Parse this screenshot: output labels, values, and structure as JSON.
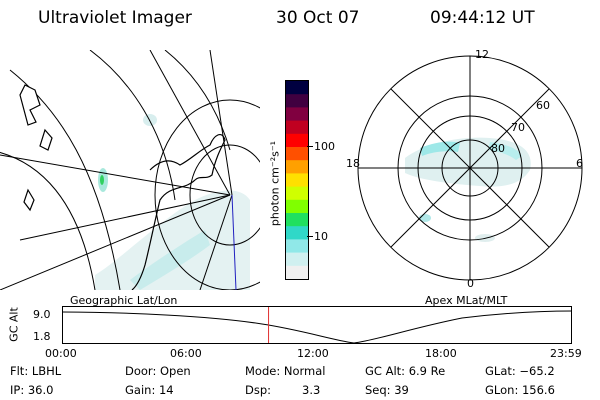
{
  "header": {
    "title": "Ultraviolet Imager",
    "date": "30 Oct 07",
    "time": "09:44:12 UT"
  },
  "geo_panel": {
    "label": "Geographic Lat/Lon"
  },
  "colorbar": {
    "unit_label": "photon cm⁻²s⁻¹",
    "ticks": [
      "100",
      "10"
    ],
    "colors": [
      "#000040",
      "#400040",
      "#800040",
      "#c00020",
      "#ff0000",
      "#ff5000",
      "#ffa000",
      "#ffe000",
      "#d0ff00",
      "#80ff00",
      "#20e060",
      "#30d8c8",
      "#90e8e8",
      "#d0f0f0",
      "#f0f0f0"
    ]
  },
  "polar_panel": {
    "label": "Apex MLat/MLT",
    "mlt_labels": {
      "top": "12",
      "left": "18",
      "right": "6",
      "bottom": "0"
    },
    "lat_labels": [
      "60",
      "70",
      "80"
    ]
  },
  "altitude_plot": {
    "ylabel": "GC Alt",
    "yticks": [
      "9.0",
      "1.8"
    ],
    "xticks": [
      "00:00",
      "06:00",
      "12:00",
      "18:00",
      "23:59"
    ],
    "current_time_fraction": 0.405
  },
  "status": {
    "flt": "Flt: LBHL",
    "ip": "IP: 36.0",
    "door": "Door: Open",
    "gain": "Gain: 14",
    "mode": "Mode: Normal",
    "dsp_label": "Dsp:",
    "dsp_value": "3.3",
    "gc_alt": "GC Alt: 6.9 Re",
    "seq": "Seq: 39",
    "glat": "GLat: −65.2",
    "glon": "GLon: 156.6"
  }
}
